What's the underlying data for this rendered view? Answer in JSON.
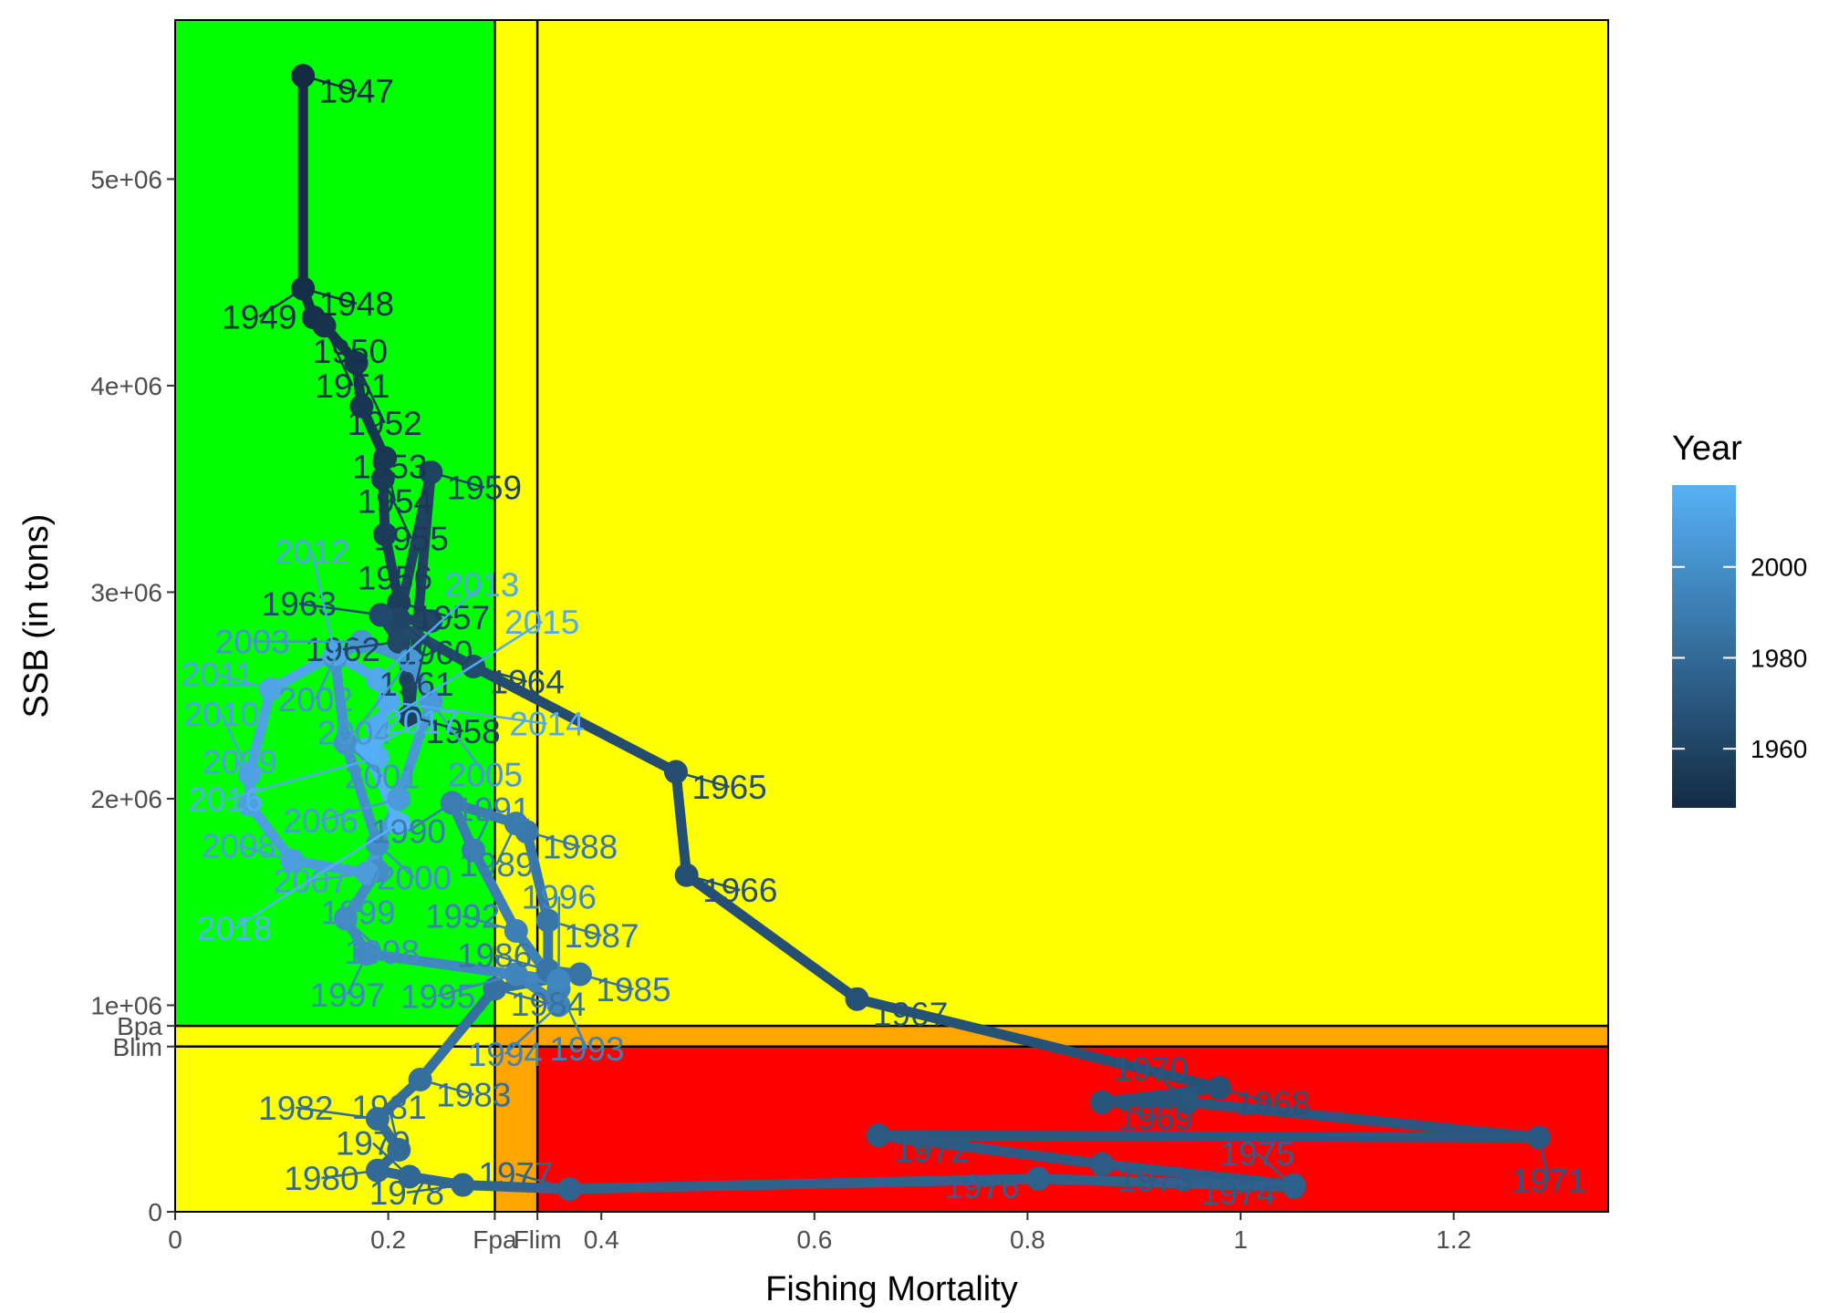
{
  "chart_data": {
    "type": "line",
    "title": "",
    "xlabel": "Fishing Mortality",
    "ylabel": "SSB (in tons)",
    "xlim": [
      0,
      1.345
    ],
    "ylim": [
      0,
      5770000
    ],
    "x_ticks": [
      {
        "value": 0,
        "label": "0"
      },
      {
        "value": 0.2,
        "label": "0.2"
      },
      {
        "value": 0.4,
        "label": "0.4"
      },
      {
        "value": 0.6,
        "label": "0.6"
      },
      {
        "value": 0.8,
        "label": "0.8"
      },
      {
        "value": 1.0,
        "label": "1"
      },
      {
        "value": 1.2,
        "label": "1.2"
      }
    ],
    "y_ticks": [
      {
        "value": 0,
        "label": "0"
      },
      {
        "value": 1000000,
        "label": "1e+06"
      },
      {
        "value": 2000000,
        "label": "2e+06"
      },
      {
        "value": 3000000,
        "label": "3e+06"
      },
      {
        "value": 4000000,
        "label": "4e+06"
      },
      {
        "value": 5000000,
        "label": "5e+06"
      }
    ],
    "reference_points": {
      "Fpa": {
        "value": 0.3,
        "label": "Fpa"
      },
      "Flim": {
        "value": 0.34,
        "label": "Flim"
      },
      "Bpa": {
        "value": 900000,
        "label": "Bpa"
      },
      "Blim": {
        "value": 800000,
        "label": "Blim"
      }
    },
    "zone_colors": {
      "green": "#00ff00",
      "yellow": "#ffff00",
      "orange": "#ffa500",
      "red": "#ff0000"
    },
    "grid": false,
    "legend": {
      "title": "Year",
      "position": "right",
      "color_low": "#132b43",
      "color_high": "#56b1f7",
      "range": [
        1947,
        2018
      ],
      "ticks": [
        {
          "value": 1960,
          "label": "1960"
        },
        {
          "value": 1980,
          "label": "1980"
        },
        {
          "value": 2000,
          "label": "2000"
        }
      ]
    },
    "series": [
      {
        "points": [
          {
            "year": 1947,
            "x": 0.12,
            "y": 5500000,
            "label": "1947"
          },
          {
            "year": 1948,
            "x": 0.12,
            "y": 4470000,
            "label": "1948"
          },
          {
            "year": 1949,
            "x": 0.12,
            "y": 4470000,
            "label": "1949"
          },
          {
            "year": 1950,
            "x": 0.13,
            "y": 4330000,
            "label": "1950"
          },
          {
            "year": 1951,
            "x": 0.14,
            "y": 4290000,
            "label": "1951"
          },
          {
            "year": 1952,
            "x": 0.17,
            "y": 4110000,
            "label": "1952"
          },
          {
            "year": 1953,
            "x": 0.175,
            "y": 3900000,
            "label": "1953"
          },
          {
            "year": 1954,
            "x": 0.197,
            "y": 3650000,
            "label": "1954"
          },
          {
            "year": 1955,
            "x": 0.195,
            "y": 3550000,
            "label": "1955"
          },
          {
            "year": 1956,
            "x": 0.197,
            "y": 3280000,
            "label": "1956"
          },
          {
            "year": 1957,
            "x": 0.21,
            "y": 2950000,
            "label": "1957"
          },
          {
            "year": 1958,
            "x": 0.22,
            "y": 2400000,
            "label": "1958"
          },
          {
            "year": 1959,
            "x": 0.24,
            "y": 3580000,
            "label": "1959"
          },
          {
            "year": 1960,
            "x": 0.21,
            "y": 2870000,
            "label": "1960"
          },
          {
            "year": 1961,
            "x": 0.24,
            "y": 2860000,
            "label": "1961"
          },
          {
            "year": 1962,
            "x": 0.21,
            "y": 2760000,
            "label": "1962"
          },
          {
            "year": 1963,
            "x": 0.193,
            "y": 2890000,
            "label": "1963"
          },
          {
            "year": 1964,
            "x": 0.28,
            "y": 2640000,
            "label": "1964"
          },
          {
            "year": 1965,
            "x": 0.47,
            "y": 2130000,
            "label": "1965"
          },
          {
            "year": 1966,
            "x": 0.48,
            "y": 1630000,
            "label": "1966"
          },
          {
            "year": 1967,
            "x": 0.64,
            "y": 1030000,
            "label": "1967"
          },
          {
            "year": 1968,
            "x": 0.98,
            "y": 600000,
            "label": "1968"
          },
          {
            "year": 1969,
            "x": 0.87,
            "y": 530000,
            "label": "1969"
          },
          {
            "year": 1970,
            "x": 0.95,
            "y": 530000,
            "label": "1970"
          },
          {
            "year": 1971,
            "x": 1.28,
            "y": 360000,
            "label": "1971"
          },
          {
            "year": 1972,
            "x": 0.66,
            "y": 370000,
            "label": "1972"
          },
          {
            "year": 1973,
            "x": 0.87,
            "y": 230000,
            "label": "1973"
          },
          {
            "year": 1974,
            "x": 1.05,
            "y": 130000,
            "label": "1974"
          },
          {
            "year": 1975,
            "x": 1.05,
            "y": 120000,
            "label": "1975"
          },
          {
            "year": 1976,
            "x": 0.81,
            "y": 160000,
            "label": "1976"
          },
          {
            "year": 1977,
            "x": 0.37,
            "y": 110000,
            "label": "1977"
          },
          {
            "year": 1978,
            "x": 0.27,
            "y": 130000,
            "label": "1978"
          },
          {
            "year": 1979,
            "x": 0.22,
            "y": 170000,
            "label": "1979"
          },
          {
            "year": 1980,
            "x": 0.19,
            "y": 200000,
            "label": "1980"
          },
          {
            "year": 1981,
            "x": 0.21,
            "y": 300000,
            "label": "1981"
          },
          {
            "year": 1982,
            "x": 0.19,
            "y": 450000,
            "label": "1982"
          },
          {
            "year": 1983,
            "x": 0.23,
            "y": 640000,
            "label": "1983"
          },
          {
            "year": 1984,
            "x": 0.3,
            "y": 1080000,
            "label": "1984"
          },
          {
            "year": 1985,
            "x": 0.38,
            "y": 1150000,
            "label": "1985"
          },
          {
            "year": 1986,
            "x": 0.35,
            "y": 1170000,
            "label": "1986"
          },
          {
            "year": 1987,
            "x": 0.35,
            "y": 1410000,
            "label": "1987"
          },
          {
            "year": 1988,
            "x": 0.33,
            "y": 1840000,
            "label": "1988"
          },
          {
            "year": 1989,
            "x": 0.32,
            "y": 1880000,
            "label": "1989"
          },
          {
            "year": 1990,
            "x": 0.26,
            "y": 1980000,
            "label": "1990"
          },
          {
            "year": 1991,
            "x": 0.28,
            "y": 1750000,
            "label": "1991"
          },
          {
            "year": 1992,
            "x": 0.32,
            "y": 1360000,
            "label": "1992"
          },
          {
            "year": 1993,
            "x": 0.36,
            "y": 1080000,
            "label": "1993"
          },
          {
            "year": 1994,
            "x": 0.36,
            "y": 1000000,
            "label": "1994"
          },
          {
            "year": 1995,
            "x": 0.32,
            "y": 1150000,
            "label": "1995"
          },
          {
            "year": 1996,
            "x": 0.36,
            "y": 1120000,
            "label": "1996"
          },
          {
            "year": 1997,
            "x": 0.18,
            "y": 1250000,
            "label": "1997"
          },
          {
            "year": 1998,
            "x": 0.16,
            "y": 1420000,
            "label": "1998"
          },
          {
            "year": 1999,
            "x": 0.19,
            "y": 1650000,
            "label": "1999"
          },
          {
            "year": 2000,
            "x": 0.19,
            "y": 1780000,
            "label": "2000"
          },
          {
            "year": 2001,
            "x": 0.16,
            "y": 2270000,
            "label": "2001"
          },
          {
            "year": 2002,
            "x": 0.15,
            "y": 2680000,
            "label": "2002"
          },
          {
            "year": 2003,
            "x": 0.175,
            "y": 2760000,
            "label": "2003"
          },
          {
            "year": 2004,
            "x": 0.22,
            "y": 2670000,
            "label": "2004"
          },
          {
            "year": 2005,
            "x": 0.24,
            "y": 2470000,
            "label": "2005"
          },
          {
            "year": 2006,
            "x": 0.21,
            "y": 2000000,
            "label": "2006"
          },
          {
            "year": 2007,
            "x": 0.18,
            "y": 1640000,
            "label": "2007"
          },
          {
            "year": 2008,
            "x": 0.11,
            "y": 1700000,
            "label": "2008"
          },
          {
            "year": 2009,
            "x": 0.07,
            "y": 1970000,
            "label": "2009"
          },
          {
            "year": 2010,
            "x": 0.07,
            "y": 2120000,
            "label": "2010"
          },
          {
            "year": 2011,
            "x": 0.09,
            "y": 2530000,
            "label": "2011"
          },
          {
            "year": 2012,
            "x": 0.15,
            "y": 2700000,
            "label": "2012"
          },
          {
            "year": 2013,
            "x": 0.19,
            "y": 2580000,
            "label": "2013"
          },
          {
            "year": 2014,
            "x": 0.2,
            "y": 2470000,
            "label": "2014"
          },
          {
            "year": 2015,
            "x": 0.19,
            "y": 2350000,
            "label": "2015"
          },
          {
            "year": 2016,
            "x": 0.19,
            "y": 2200000,
            "label": "2016"
          },
          {
            "year": 2017,
            "x": 0.18,
            "y": 2240000,
            "label": "2017"
          },
          {
            "year": 2018,
            "x": 0.21,
            "y": 1880000,
            "label": "2018"
          }
        ]
      }
    ]
  }
}
